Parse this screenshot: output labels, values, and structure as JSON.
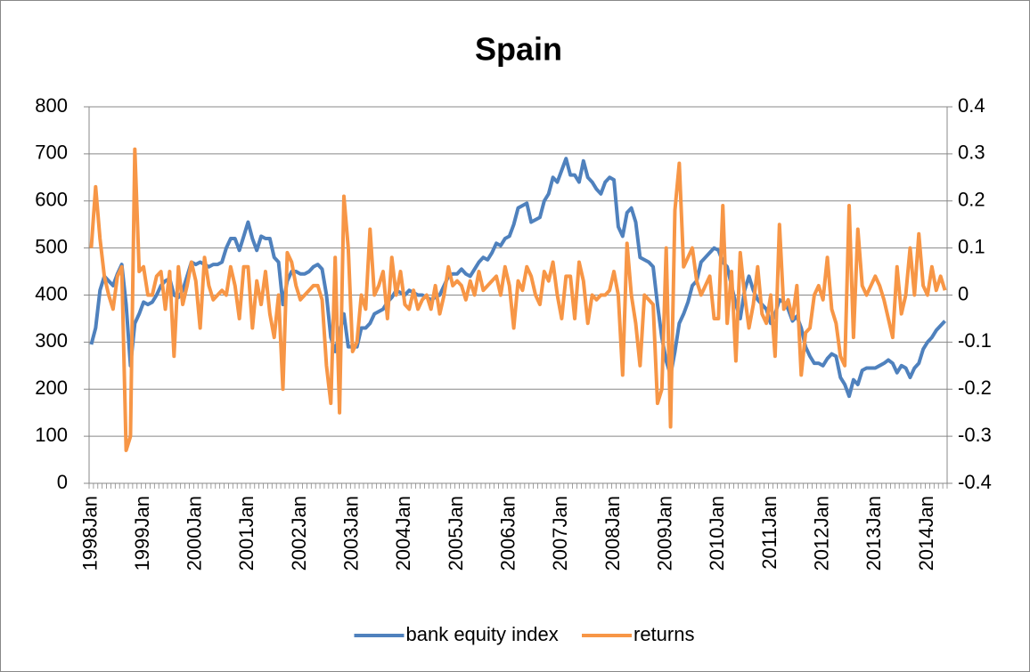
{
  "chart_data": {
    "type": "line",
    "title": "Spain",
    "categories": [
      "1998Jan",
      null,
      null,
      null,
      null,
      null,
      null,
      null,
      null,
      null,
      null,
      null,
      "1999Jan",
      null,
      null,
      null,
      null,
      null,
      null,
      null,
      null,
      null,
      null,
      null,
      "2000Jan",
      null,
      null,
      null,
      null,
      null,
      null,
      null,
      null,
      null,
      null,
      null,
      "2001Jan",
      null,
      null,
      null,
      null,
      null,
      null,
      null,
      null,
      null,
      null,
      null,
      "2002Jan",
      null,
      null,
      null,
      null,
      null,
      null,
      null,
      null,
      null,
      null,
      null,
      "2003Jan",
      null,
      null,
      null,
      null,
      null,
      null,
      null,
      null,
      null,
      null,
      null,
      "2004Jan",
      null,
      null,
      null,
      null,
      null,
      null,
      null,
      null,
      null,
      null,
      null,
      "2005Jan",
      null,
      null,
      null,
      null,
      null,
      null,
      null,
      null,
      null,
      null,
      null,
      "2006Jan",
      null,
      null,
      null,
      null,
      null,
      null,
      null,
      null,
      null,
      null,
      null,
      "2007Jan",
      null,
      null,
      null,
      null,
      null,
      null,
      null,
      null,
      null,
      null,
      null,
      "2008Jan",
      null,
      null,
      null,
      null,
      null,
      null,
      null,
      null,
      null,
      null,
      null,
      "2009Jan",
      null,
      null,
      null,
      null,
      null,
      null,
      null,
      null,
      null,
      null,
      null,
      "2010Jan",
      null,
      null,
      null,
      null,
      null,
      null,
      null,
      null,
      null,
      null,
      null,
      "2011Jan",
      null,
      null,
      null,
      null,
      null,
      null,
      null,
      null,
      null,
      null,
      null,
      "2012Jan",
      null,
      null,
      null,
      null,
      null,
      null,
      null,
      null,
      null,
      null,
      null,
      "2013Jan",
      null,
      null,
      null,
      null,
      null,
      null,
      null,
      null,
      null,
      null,
      null,
      "2014Jan",
      null,
      null,
      null,
      null
    ],
    "series": [
      {
        "name": "bank equity index",
        "color": "#4f81bd",
        "axis": "y",
        "values": [
          295,
          330,
          410,
          440,
          430,
          420,
          445,
          465,
          380,
          250,
          340,
          360,
          385,
          380,
          385,
          400,
          420,
          430,
          435,
          400,
          395,
          410,
          440,
          470,
          465,
          470,
          465,
          460,
          465,
          465,
          470,
          500,
          520,
          520,
          495,
          525,
          555,
          520,
          495,
          525,
          520,
          520,
          480,
          470,
          380,
          430,
          450,
          450,
          445,
          445,
          450,
          460,
          465,
          455,
          400,
          310,
          280,
          320,
          360,
          290,
          290,
          290,
          330,
          330,
          340,
          360,
          365,
          370,
          385,
          395,
          410,
          405,
          400,
          410,
          405,
          400,
          400,
          395,
          390,
          395,
          400,
          420,
          440,
          445,
          445,
          455,
          445,
          440,
          455,
          470,
          480,
          475,
          490,
          510,
          505,
          520,
          525,
          550,
          585,
          590,
          595,
          555,
          560,
          565,
          600,
          615,
          650,
          640,
          665,
          690,
          655,
          655,
          640,
          685,
          650,
          640,
          625,
          615,
          640,
          650,
          645,
          545,
          525,
          575,
          585,
          555,
          480,
          475,
          470,
          460,
          380,
          310,
          260,
          230,
          280,
          340,
          360,
          385,
          420,
          430,
          470,
          480,
          490,
          500,
          495,
          470,
          460,
          420,
          380,
          350,
          410,
          440,
          410,
          390,
          380,
          370,
          340,
          360,
          390,
          385,
          370,
          345,
          355,
          330,
          290,
          270,
          255,
          255,
          250,
          265,
          275,
          270,
          225,
          210,
          185,
          220,
          210,
          240,
          245,
          245,
          245,
          250,
          255,
          262,
          255,
          235,
          250,
          245,
          225,
          245,
          255,
          285,
          300,
          310,
          325,
          335,
          345
        ]
      },
      {
        "name": "returns",
        "color": "#f79646",
        "axis": "y2",
        "values": [
          0.1,
          0.23,
          0.12,
          0.04,
          0.0,
          -0.03,
          0.04,
          0.06,
          -0.33,
          -0.3,
          0.31,
          0.05,
          0.06,
          0.0,
          0.0,
          0.04,
          0.05,
          -0.03,
          0.05,
          -0.13,
          0.06,
          -0.02,
          0.02,
          0.07,
          0.03,
          -0.07,
          0.08,
          0.02,
          -0.01,
          0.0,
          0.01,
          0.0,
          0.06,
          0.02,
          -0.05,
          0.06,
          0.06,
          -0.07,
          0.03,
          -0.02,
          0.05,
          -0.04,
          -0.09,
          0.0,
          -0.2,
          0.09,
          0.07,
          0.02,
          -0.01,
          0.0,
          0.01,
          0.02,
          0.02,
          -0.01,
          -0.15,
          -0.23,
          0.08,
          -0.25,
          0.21,
          0.1,
          -0.12,
          -0.1,
          0.0,
          -0.03,
          0.14,
          0.0,
          0.02,
          0.05,
          -0.05,
          0.08,
          0.0,
          0.05,
          -0.02,
          -0.03,
          0.01,
          -0.03,
          -0.01,
          0.0,
          -0.03,
          0.02,
          -0.04,
          0.0,
          0.06,
          0.02,
          0.03,
          0.02,
          -0.01,
          0.03,
          0.0,
          0.05,
          0.01,
          0.02,
          0.03,
          0.04,
          0.0,
          0.06,
          0.02,
          -0.07,
          0.03,
          0.01,
          0.06,
          0.04,
          0.0,
          -0.02,
          0.05,
          0.03,
          0.07,
          0.0,
          -0.05,
          0.04,
          0.04,
          -0.05,
          0.07,
          0.03,
          -0.06,
          0.0,
          -0.01,
          0.0,
          0.0,
          0.01,
          0.05,
          0.0,
          -0.17,
          0.11,
          0.0,
          -0.06,
          -0.15,
          0.0,
          -0.01,
          -0.02,
          -0.23,
          -0.2,
          0.1,
          -0.28,
          0.18,
          0.28,
          0.06,
          0.08,
          0.1,
          0.03,
          0.0,
          0.02,
          0.04,
          -0.05,
          -0.05,
          0.19,
          -0.06,
          0.05,
          -0.14,
          0.09,
          0.0,
          -0.07,
          -0.02,
          0.06,
          -0.04,
          -0.06,
          0.0,
          -0.13,
          0.15,
          -0.03,
          -0.01,
          -0.05,
          0.02,
          -0.17,
          -0.08,
          -0.07,
          0.0,
          0.02,
          -0.01,
          0.08,
          -0.03,
          -0.06,
          -0.13,
          -0.15,
          0.19,
          -0.09,
          0.14,
          0.02,
          0.0,
          0.02,
          0.04,
          0.02,
          -0.01,
          -0.05,
          -0.09,
          0.06,
          -0.04,
          0.0,
          0.1,
          0.0,
          0.13,
          0.02,
          0.0,
          0.06,
          0.01,
          0.04,
          0.01
        ]
      }
    ],
    "ylim": [
      0,
      800
    ],
    "yticks": [
      0,
      100,
      200,
      300,
      400,
      500,
      600,
      700,
      800
    ],
    "y2lim": [
      -0.4,
      0.4
    ],
    "y2ticks": [
      -0.4,
      -0.3,
      -0.2,
      -0.1,
      0,
      0.1,
      0.2,
      0.3,
      0.4
    ],
    "grid": true,
    "legend": "bottom"
  }
}
